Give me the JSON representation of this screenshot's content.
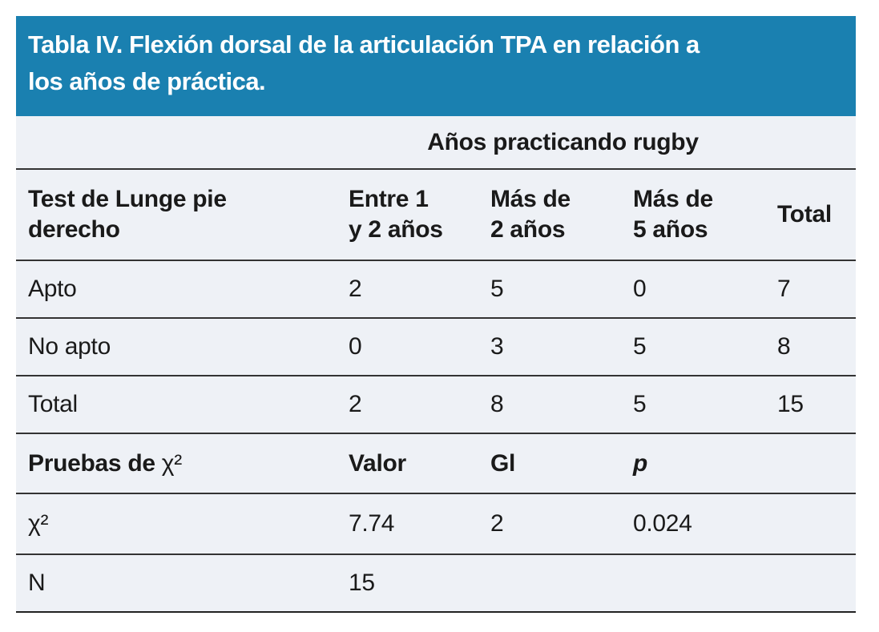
{
  "title": "Tabla IV. Flexión dorsal de la articulación TPA en relación a\nlos años de práctica.",
  "colors": {
    "title_bg": "#1a80b0",
    "title_text": "#ffffff",
    "table_bg": "#eef1f6",
    "rule": "#333333",
    "text": "#1a1a1a"
  },
  "table": {
    "group_header": "Años practicando rugby",
    "columns": [
      "Test de Lunge pie\nderecho",
      "Entre 1\ny 2 años",
      "Más de\n2 años",
      "Más de\n5 años",
      "Total"
    ],
    "rows": [
      {
        "label": "Apto",
        "values": [
          "2",
          "5",
          "0",
          "7"
        ]
      },
      {
        "label": "No apto",
        "values": [
          "0",
          "3",
          "5",
          "8"
        ]
      },
      {
        "label": "Total",
        "values": [
          "2",
          "8",
          "5",
          "15"
        ]
      }
    ],
    "stats": {
      "header": {
        "label_prefix": "Pruebas de ",
        "label_chi": "χ²",
        "col_valor": "Valor",
        "col_gl": "Gl",
        "col_p": "p"
      },
      "rows": [
        {
          "label": "χ²",
          "values": [
            "7.74",
            "2",
            "0.024"
          ]
        },
        {
          "label": "N",
          "values": [
            "15",
            "",
            ""
          ]
        }
      ]
    }
  }
}
